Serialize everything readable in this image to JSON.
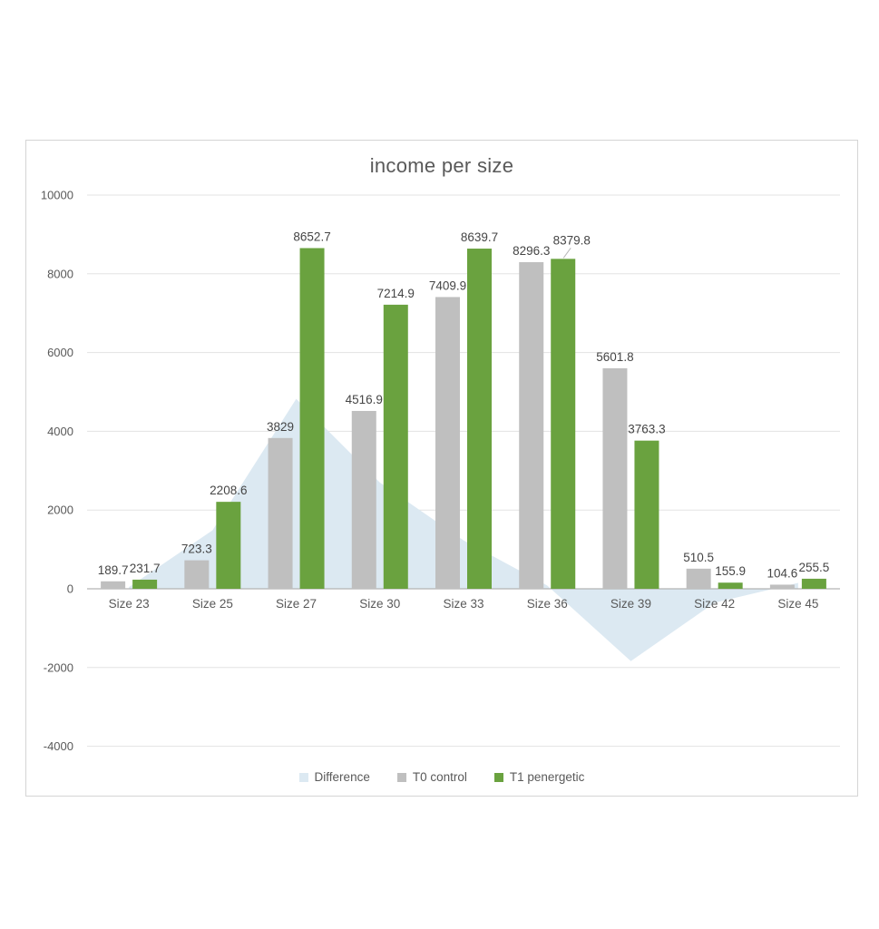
{
  "colors": {
    "background": "#ffffff",
    "card_border": "#d5d5d5",
    "grid": "#e3e3e3",
    "axis_line": "#b3b3b3",
    "text_gray": "#595959",
    "data_label_text": "#454545",
    "leader_line": "#b8b8b8",
    "area_blue": "#dce9f2",
    "bar_gray": "#bfbfbf",
    "bar_green": "#6aa23f"
  },
  "chart_data": {
    "type": "combo",
    "title": "income per size",
    "categories": [
      "Size 23",
      "Size 25",
      "Size 27",
      "Size 30",
      "Size 33",
      "Size 36",
      "Size 39",
      "Size 42",
      "Size 45"
    ],
    "series": [
      {
        "name": "Difference",
        "chart_type": "area",
        "color": "#dce9f2",
        "values": [
          42.0,
          1485.3,
          4823.7,
          2698.0,
          1229.8,
          83.5,
          -1838.5,
          -354.6,
          150.9
        ]
      },
      {
        "name": "T0 control",
        "chart_type": "bar",
        "color": "#bfbfbf",
        "values": [
          189.7,
          723.3,
          3829,
          4516.9,
          7409.9,
          8296.3,
          5601.8,
          510.5,
          104.6
        ],
        "labels": [
          "189.7",
          "723.3",
          "3829",
          "4516.9",
          "7409.9",
          "8296.3",
          "5601.8",
          "510.5",
          "104.6"
        ]
      },
      {
        "name": "T1 penergetic",
        "chart_type": "bar",
        "color": "#6aa23f",
        "values": [
          231.7,
          2208.6,
          8652.7,
          7214.9,
          8639.7,
          8379.8,
          3763.3,
          155.9,
          255.5
        ],
        "labels": [
          "231.7",
          "2208.6",
          "8652.7",
          "7214.9",
          "8639.7",
          "8379.8",
          "3763.3",
          "155.9",
          "255.5"
        ]
      }
    ],
    "y_axis": {
      "min": -4000,
      "max": 10000,
      "step": 2000,
      "tick_labels": [
        "10000",
        "8000",
        "6000",
        "4000",
        "2000",
        "0",
        "-2000",
        "-4000"
      ]
    },
    "legend": {
      "position": "bottom",
      "entries": [
        "Difference",
        "T0 control",
        "T1 penergetic"
      ]
    },
    "grid": true
  }
}
